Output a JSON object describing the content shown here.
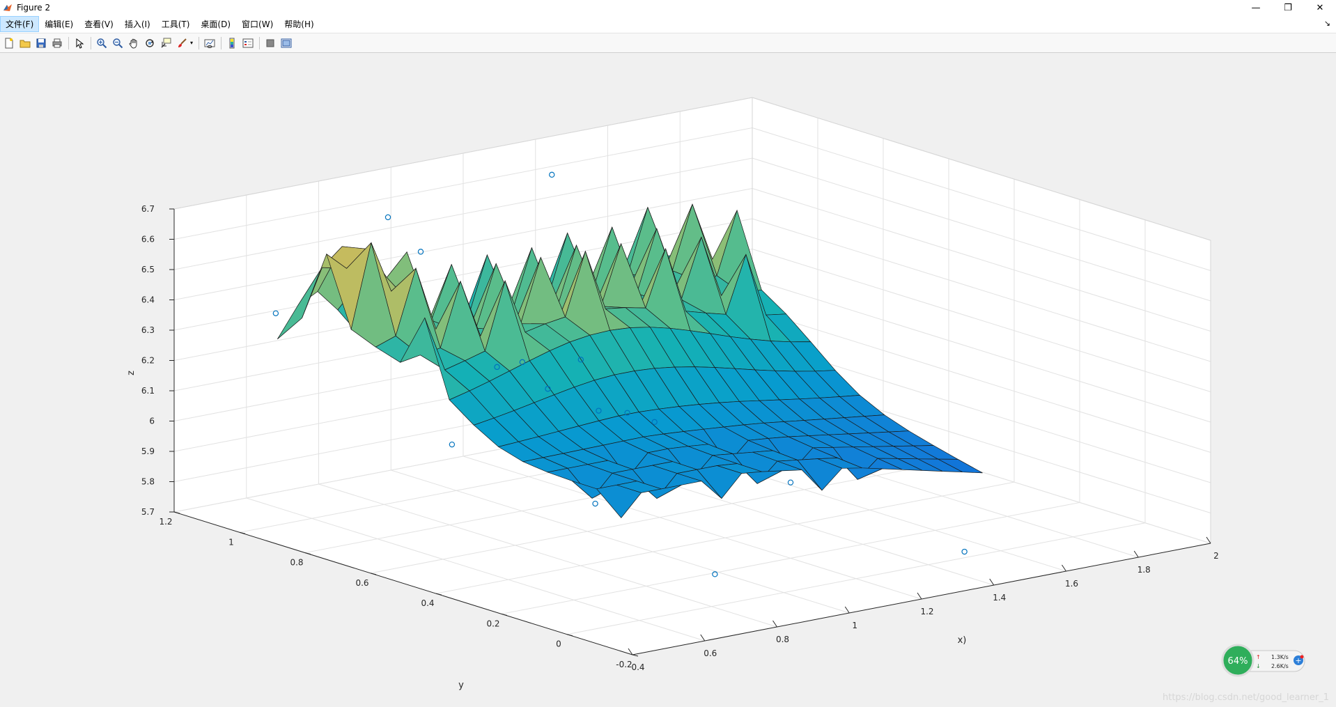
{
  "window": {
    "title": "Figure 2",
    "controls": {
      "minimize": "—",
      "maximize": "❐",
      "close": "✕"
    }
  },
  "menu": {
    "items": [
      "文件(F)",
      "编辑(E)",
      "查看(V)",
      "插入(I)",
      "工具(T)",
      "桌面(D)",
      "窗口(W)",
      "帮助(H)"
    ],
    "dock": "↘"
  },
  "toolbar": {
    "buttons": [
      "new-figure-icon",
      "open-file-icon",
      "save-icon",
      "print-icon",
      "sep",
      "select-arrow-icon",
      "sep",
      "zoom-in-icon",
      "zoom-out-icon",
      "pan-hand-icon",
      "rotate-3d-icon",
      "data-cursor-icon",
      "brush-icon",
      "sep",
      "link-plot-icon",
      "sep",
      "colorbar-icon",
      "legend-icon",
      "sep",
      "hide-plot-tools-icon",
      "show-plot-tools-icon"
    ]
  },
  "chart_data": {
    "type": "surface",
    "xlabel": "x)",
    "ylabel": "y",
    "zlabel": "z",
    "xlim": [
      0.4,
      2
    ],
    "ylim": [
      -0.2,
      1.2
    ],
    "zlim": [
      5.7,
      6.7
    ],
    "x_ticks": [
      "0.4",
      "0.6",
      "0.8",
      "1",
      "1.2",
      "1.4",
      "1.6",
      "1.8",
      "2"
    ],
    "y_ticks": [
      "-0.2",
      "0",
      "0.2",
      "0.4",
      "0.6",
      "0.8",
      "1",
      "1.2"
    ],
    "z_ticks": [
      "5.7",
      "5.8",
      "5.9",
      "6",
      "6.1",
      "6.2",
      "6.3",
      "6.4",
      "6.5",
      "6.6",
      "6.7"
    ],
    "grid": true,
    "colormap": "parula",
    "scatter_points": [
      {
        "x": 0.5,
        "y": 1.0,
        "z": 6.4
      },
      {
        "x": 0.72,
        "y": 0.9,
        "z": 6.7
      },
      {
        "x": 0.72,
        "y": 0.8,
        "z": 6.62
      },
      {
        "x": 1.4,
        "y": 1.15,
        "z": 6.6
      },
      {
        "x": 0.75,
        "y": 0.6,
        "z": 6.3
      },
      {
        "x": 0.82,
        "y": 0.6,
        "z": 6.3
      },
      {
        "x": 0.58,
        "y": 0.55,
        "z": 6.1
      },
      {
        "x": 0.8,
        "y": 0.5,
        "z": 6.25
      },
      {
        "x": 0.85,
        "y": 0.4,
        "z": 6.2
      },
      {
        "x": 1.0,
        "y": 0.62,
        "z": 6.26
      },
      {
        "x": 0.75,
        "y": 0.3,
        "z": 5.95
      },
      {
        "x": 1.02,
        "y": 0.5,
        "z": 6.12
      },
      {
        "x": 1.05,
        "y": 0.45,
        "z": 6.1
      },
      {
        "x": 0.9,
        "y": 0.1,
        "z": 5.75
      },
      {
        "x": 1.2,
        "y": 0.2,
        "z": 5.95
      },
      {
        "x": 1.5,
        "y": 0.0,
        "z": 5.72
      }
    ]
  },
  "watermark": "https://blog.csdn.net/good_learner_1",
  "netwidget": {
    "percent": "64%",
    "upload": "1.3K/s",
    "download": "2.6K/s",
    "up_arrow": "↑",
    "down_arrow": "↓",
    "plus": "+"
  }
}
